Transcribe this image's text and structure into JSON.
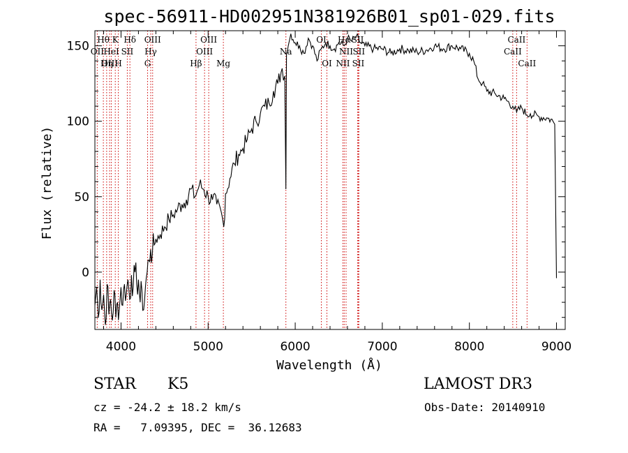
{
  "chart_data": {
    "type": "line",
    "title": "spec-56911-HD002951N381926B01_sp01-029.fits",
    "xlabel": "Wavelength (Å)",
    "ylabel": "Flux (relative)",
    "xlim": [
      3700,
      9100
    ],
    "ylim": [
      -38,
      160
    ],
    "xticks": [
      4000,
      5000,
      6000,
      7000,
      8000,
      9000
    ],
    "yticks": [
      0,
      50,
      100,
      150
    ],
    "grid": false,
    "line_color": "#000000",
    "marker_color": "#cc0000",
    "series": [
      {
        "name": "spectrum",
        "x": [
          3700,
          3720,
          3740,
          3760,
          3780,
          3800,
          3820,
          3840,
          3860,
          3880,
          3900,
          3920,
          3940,
          3960,
          3980,
          4000,
          4020,
          4040,
          4060,
          4080,
          4100,
          4120,
          4140,
          4160,
          4180,
          4200,
          4220,
          4240,
          4260,
          4280,
          4300,
          4320,
          4340,
          4360,
          4380,
          4400,
          4450,
          4500,
          4550,
          4600,
          4650,
          4700,
          4750,
          4800,
          4850,
          4900,
          4950,
          5000,
          5050,
          5100,
          5150,
          5180,
          5200,
          5250,
          5300,
          5350,
          5400,
          5450,
          5500,
          5550,
          5600,
          5650,
          5700,
          5750,
          5800,
          5850,
          5880,
          5893,
          5900,
          5920,
          5950,
          6000,
          6050,
          6100,
          6150,
          6200,
          6250,
          6300,
          6350,
          6400,
          6450,
          6500,
          6563,
          6600,
          6650,
          6700,
          6750,
          6800,
          6900,
          7000,
          7100,
          7200,
          7300,
          7400,
          7500,
          7600,
          7700,
          7800,
          7900,
          8000,
          8050,
          8100,
          8150,
          8200,
          8300,
          8400,
          8498,
          8542,
          8600,
          8662,
          8700,
          8800,
          8900,
          8960,
          8980,
          8995,
          9000
        ],
        "y": [
          -22,
          -10,
          -30,
          -5,
          -25,
          -15,
          -35,
          -8,
          -28,
          -18,
          -32,
          -12,
          -30,
          -20,
          -25,
          -10,
          -22,
          -8,
          -15,
          -5,
          -18,
          -2,
          -10,
          0,
          -8,
          -5,
          -20,
          -12,
          -25,
          -10,
          0,
          8,
          15,
          12,
          18,
          22,
          25,
          30,
          35,
          38,
          42,
          45,
          48,
          55,
          50,
          58,
          55,
          50,
          48,
          45,
          40,
          30,
          52,
          62,
          72,
          78,
          82,
          88,
          95,
          100,
          105,
          110,
          112,
          120,
          125,
          135,
          130,
          55,
          145,
          150,
          158,
          152,
          150,
          145,
          155,
          150,
          140,
          148,
          152,
          150,
          148,
          152,
          150,
          155,
          153,
          156,
          152,
          150,
          148,
          148,
          145,
          148,
          147,
          146,
          147,
          150,
          148,
          150,
          148,
          145,
          140,
          128,
          125,
          120,
          118,
          115,
          110,
          106,
          109,
          104,
          105,
          103,
          102,
          100,
          98,
          20,
          -4
        ]
      }
    ],
    "line_markers": [
      {
        "name": "Hθ",
        "x": 3797,
        "row": 1
      },
      {
        "name": "OII",
        "x": 3727,
        "row": 2
      },
      {
        "name": "OIII",
        "x": 3869,
        "row": 3
      },
      {
        "name": "K",
        "x": 3934,
        "row": 1
      },
      {
        "name": "HeI",
        "x": 3889,
        "row": 2
      },
      {
        "name": "Hη",
        "x": 3835,
        "row": 3
      },
      {
        "name": "H",
        "x": 3969,
        "row": 3
      },
      {
        "name": "Hδ",
        "x": 4102,
        "row": 1
      },
      {
        "name": "SII",
        "x": 4072,
        "row": 2
      },
      {
        "name": "OIII",
        "x": 4363,
        "row": 1
      },
      {
        "name": "Hγ",
        "x": 4341,
        "row": 2
      },
      {
        "name": "G",
        "x": 4305,
        "row": 3
      },
      {
        "name": "OIII",
        "x": 5007,
        "row": 1
      },
      {
        "name": "OIII",
        "x": 4959,
        "row": 2
      },
      {
        "name": "Hβ",
        "x": 4861,
        "row": 3
      },
      {
        "name": "Mg",
        "x": 5175,
        "row": 3
      },
      {
        "name": "Na",
        "x": 5893,
        "row": 2
      },
      {
        "name": "OI",
        "x": 6300,
        "row": 1
      },
      {
        "name": "OI",
        "x": 6364,
        "row": 3
      },
      {
        "name": "Hα",
        "x": 6563,
        "row": 1
      },
      {
        "name": "NII",
        "x": 6584,
        "row": 2
      },
      {
        "name": "NII",
        "x": 6548,
        "row": 3
      },
      {
        "name": "SII",
        "x": 6717,
        "row": 1
      },
      {
        "name": "SII",
        "x": 6731,
        "row": 2
      },
      {
        "name": "SII",
        "x": 6724,
        "row": 3
      },
      {
        "name": "CaII",
        "x": 8542,
        "row": 1
      },
      {
        "name": "CaII",
        "x": 8498,
        "row": 2
      },
      {
        "name": "CaII",
        "x": 8662,
        "row": 3
      }
    ]
  },
  "info": {
    "object_class": "STAR",
    "subclass": "K5",
    "survey": "LAMOST DR3",
    "cz": "cz = -24.2 ± 18.2 km/s",
    "obs_date": "Obs-Date: 20140910",
    "radec": "RA =   7.09395, DEC =  36.12683"
  }
}
